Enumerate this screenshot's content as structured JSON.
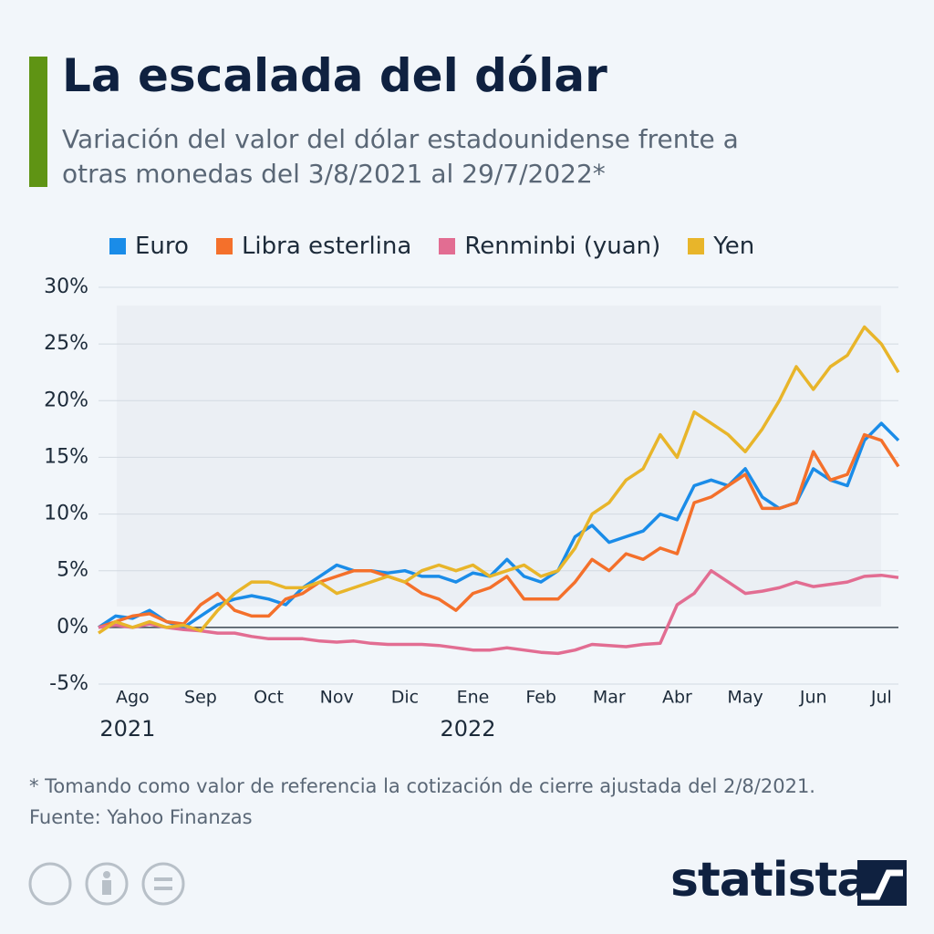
{
  "title": "La escalada del dólar",
  "subtitle": "Variación del valor del dólar estadounidense frente a otras monedas del 3/8/2021 al 29/7/2022*",
  "footnote": "* Tomando como valor de referencia la cotización de cierre ajustada del 2/8/2021.",
  "source": "Fuente: Yahoo Finanzas",
  "brand": "statista",
  "chart_data": {
    "type": "line",
    "categories": [
      null,
      null,
      "Ago",
      null,
      null,
      null,
      "Sep",
      null,
      null,
      null,
      "Oct",
      null,
      null,
      null,
      "Nov",
      null,
      null,
      null,
      "Dic",
      null,
      null,
      null,
      "Ene",
      null,
      null,
      null,
      "Feb",
      null,
      null,
      null,
      "Mar",
      null,
      null,
      null,
      "Abr",
      null,
      null,
      null,
      "May",
      null,
      null,
      null,
      "Jun",
      null,
      null,
      null,
      "Jul",
      null
    ],
    "years": [
      "2021",
      "2022"
    ],
    "ylim": [
      -5,
      30
    ],
    "yticks": [
      {
        "value": -5,
        "label": "-5%"
      },
      {
        "value": 0,
        "label": "0%"
      },
      {
        "value": 5,
        "label": "5%"
      },
      {
        "value": 10,
        "label": "10%"
      },
      {
        "value": 15,
        "label": "15%"
      },
      {
        "value": 20,
        "label": "20%"
      },
      {
        "value": 25,
        "label": "25%"
      },
      {
        "value": 30,
        "label": "30%"
      }
    ],
    "grid": true,
    "series": [
      {
        "name": "Euro",
        "color": "#1a8ce8",
        "values": [
          0,
          1,
          0.8,
          1.5,
          0.5,
          0,
          1,
          2,
          2.5,
          2.8,
          2.5,
          2,
          3.5,
          4.5,
          5.5,
          5,
          5,
          4.8,
          5,
          4.5,
          4.5,
          4,
          4.8,
          4.5,
          6,
          4.5,
          4,
          5,
          8,
          9,
          7.5,
          8,
          8.5,
          10,
          9.5,
          12.5,
          13,
          12.5,
          14,
          11.5,
          10.5,
          11,
          14,
          13,
          12.5,
          16.5,
          18,
          16.5
        ]
      },
      {
        "name": "Libra esterlina",
        "color": "#f4702b",
        "values": [
          0,
          0.5,
          1,
          1.2,
          0.5,
          0.3,
          2,
          3,
          1.5,
          1,
          1,
          2.5,
          3,
          4,
          4.5,
          5,
          5,
          4.5,
          4,
          3,
          2.5,
          1.5,
          3,
          3.5,
          4.5,
          2.5,
          2.5,
          2.5,
          4,
          6,
          5,
          6.5,
          6,
          7,
          6.5,
          11,
          11.5,
          12.5,
          13.5,
          10.5,
          10.5,
          11,
          15.5,
          13,
          13.5,
          17,
          16.5,
          14.2
        ]
      },
      {
        "name": "Renminbi (yuan)",
        "color": "#e26d92",
        "values": [
          0,
          0.2,
          0,
          0.3,
          0,
          -0.2,
          -0.3,
          -0.5,
          -0.5,
          -0.8,
          -1,
          -1,
          -1,
          -1.2,
          -1.3,
          -1.2,
          -1.4,
          -1.5,
          -1.5,
          -1.5,
          -1.6,
          -1.8,
          -2,
          -2,
          -1.8,
          -2,
          -2.2,
          -2.3,
          -2,
          -1.5,
          -1.6,
          -1.7,
          -1.5,
          -1.4,
          2,
          3,
          5,
          4,
          3,
          3.2,
          3.5,
          4,
          3.6,
          3.8,
          4,
          4.5,
          4.6,
          4.4
        ]
      },
      {
        "name": "Yen",
        "color": "#e8b52a",
        "values": [
          -0.5,
          0.5,
          0,
          0.5,
          0,
          0.2,
          -0.3,
          1.5,
          3,
          4,
          4,
          3.5,
          3.5,
          4,
          3,
          3.5,
          4,
          4.5,
          4,
          5,
          5.5,
          5,
          5.5,
          4.5,
          5,
          5.5,
          4.5,
          5,
          7,
          10,
          11,
          13,
          14,
          17,
          15,
          19,
          18,
          17,
          15.5,
          17.5,
          20,
          23,
          21,
          23,
          24,
          26.5,
          25,
          22.5
        ]
      }
    ]
  }
}
